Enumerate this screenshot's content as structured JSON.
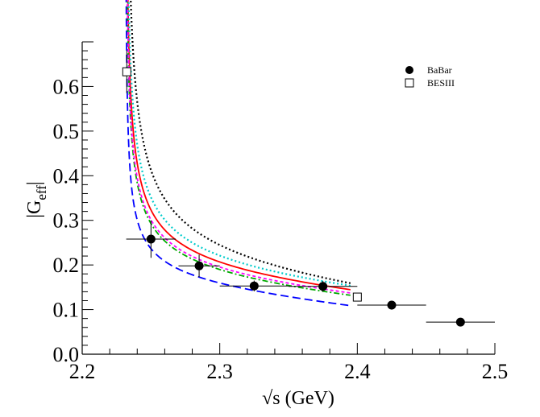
{
  "chart_data": {
    "type": "scatter",
    "xlabel": "√s (GeV)",
    "ylabel_base": "|G",
    "ylabel_sub": "eff",
    "ylabel_end": "|",
    "xlim": [
      2.2,
      2.5
    ],
    "ylim": [
      0.0,
      0.7
    ],
    "xticks": [
      2.2,
      2.3,
      2.4,
      2.5
    ],
    "xtick_labels": [
      "2.2",
      "2.3",
      "2.4",
      "2.5"
    ],
    "yticks": [
      0.0,
      0.1,
      0.2,
      0.3,
      0.4,
      0.5,
      0.6
    ],
    "ytick_labels": [
      "0.0",
      "0.1",
      "0.2",
      "0.3",
      "0.4",
      "0.5",
      "0.6"
    ],
    "legend": [
      {
        "label": "BaBar",
        "marker": "filled-circle"
      },
      {
        "label": "BESIII",
        "marker": "open-square"
      }
    ],
    "series": [
      {
        "name": "BaBar",
        "marker": "filled-circle",
        "points": [
          {
            "x": 2.25,
            "y": 0.258,
            "xerr": 0.018,
            "yerr": 0.042
          },
          {
            "x": 2.285,
            "y": 0.198,
            "xerr": 0.015,
            "yerr": 0.025
          },
          {
            "x": 2.325,
            "y": 0.153,
            "xerr": 0.025,
            "yerr": 0.012
          },
          {
            "x": 2.375,
            "y": 0.152,
            "xerr": 0.025,
            "yerr": 0.012
          },
          {
            "x": 2.425,
            "y": 0.11,
            "xerr": 0.025,
            "yerr": 0.01
          },
          {
            "x": 2.475,
            "y": 0.072,
            "xerr": 0.025,
            "yerr": 0.006
          }
        ]
      },
      {
        "name": "BESIII",
        "marker": "open-square",
        "points": [
          {
            "x": 2.2324,
            "y": 0.633,
            "xerr": 0.0,
            "yerr": 0.048
          },
          {
            "x": 2.4,
            "y": 0.128,
            "xerr": 0.0,
            "yerr": 0.008
          }
        ]
      }
    ],
    "curves": [
      {
        "color": "#ff0000",
        "dash": "solid",
        "amp": 0.03,
        "base": 0.108,
        "slope": 0.23
      },
      {
        "color": "#0000ff",
        "dash": "long-dash",
        "amp": 0.018,
        "base": 0.11,
        "slope": 0.28
      },
      {
        "color": "#00aa00",
        "dash": "dash-dot",
        "amp": 0.026,
        "base": 0.107,
        "slope": 0.24
      },
      {
        "color": "#ff00ff",
        "dash": "short-dash",
        "amp": 0.027,
        "base": 0.108,
        "slope": 0.23
      },
      {
        "color": "#00cccc",
        "dash": "dotted",
        "amp": 0.034,
        "base": 0.107,
        "slope": 0.23
      },
      {
        "color": "#000000",
        "dash": "dotted",
        "amp": 0.044,
        "base": 0.096,
        "slope": 0.28
      }
    ],
    "curve_domain": [
      2.2318,
      2.395
    ],
    "threshold": 2.2313
  }
}
